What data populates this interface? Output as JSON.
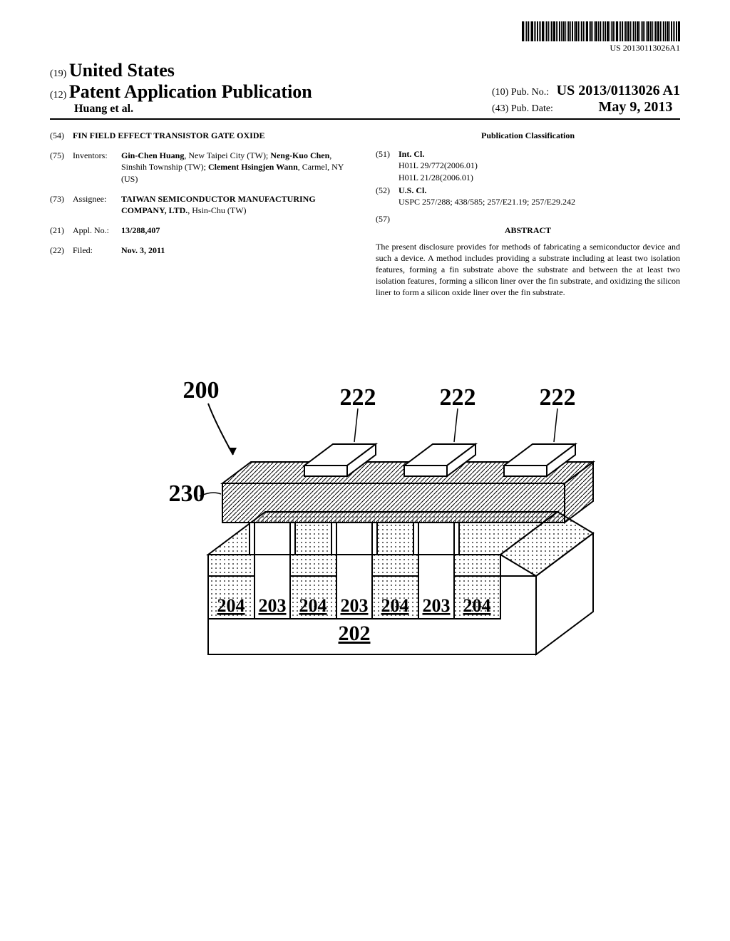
{
  "barcode": {
    "text": "US 20130113026A1"
  },
  "header": {
    "country_num": "(19)",
    "country": "United States",
    "kind_num": "(12)",
    "kind": "Patent Application Publication",
    "authors": "Huang et al.",
    "pubno_num": "(10)",
    "pubno_label": "Pub. No.:",
    "pubno": "US 2013/0113026 A1",
    "pubdate_num": "(43)",
    "pubdate_label": "Pub. Date:",
    "pubdate": "May 9, 2013"
  },
  "left": {
    "f54": {
      "num": "(54)",
      "val": "FIN FIELD EFFECT TRANSISTOR GATE OXIDE"
    },
    "f75": {
      "num": "(75)",
      "lbl": "Inventors:",
      "val_html": "<span class='b'>Gin-Chen Huang</span>, New Taipei City (TW); <span class='b'>Neng-Kuo Chen</span>, Sinshih Township (TW); <span class='b'>Clement Hsingjen Wann</span>, Carmel, NY (US)"
    },
    "f73": {
      "num": "(73)",
      "lbl": "Assignee:",
      "val_html": "<span class='b'>TAIWAN SEMICONDUCTOR MANUFACTURING COMPANY, LTD.</span>, Hsin-Chu (TW)"
    },
    "f21": {
      "num": "(21)",
      "lbl": "Appl. No.:",
      "val": "13/288,407"
    },
    "f22": {
      "num": "(22)",
      "lbl": "Filed:",
      "val": "Nov. 3, 2011"
    }
  },
  "right": {
    "class_title": "Publication Classification",
    "f51": {
      "num": "(51)",
      "lbl": "Int. Cl.",
      "rows": [
        {
          "code": "H01L 29/772",
          "date": "(2006.01)"
        },
        {
          "code": "H01L 21/28",
          "date": "(2006.01)"
        }
      ]
    },
    "f52": {
      "num": "(52)",
      "lbl": "U.S. Cl.",
      "val": "USPC  257/288; 438/585; 257/E21.19; 257/E29.242"
    },
    "f57": {
      "num": "(57)",
      "title": "ABSTRACT",
      "text": "The present disclosure provides for methods of fabricating a semiconductor device and such a device. A method includes providing a substrate including at least two isolation features, forming a fin substrate above the substrate and between the at least two isolation features, forming a silicon liner over the fin substrate, and oxidizing the silicon liner to form a silicon oxide liner over the fin substrate."
    }
  },
  "figure": {
    "labels": {
      "l200": "200",
      "l222": "222",
      "l230": "230",
      "l204": "204",
      "l203": "203",
      "l202": "202"
    }
  }
}
